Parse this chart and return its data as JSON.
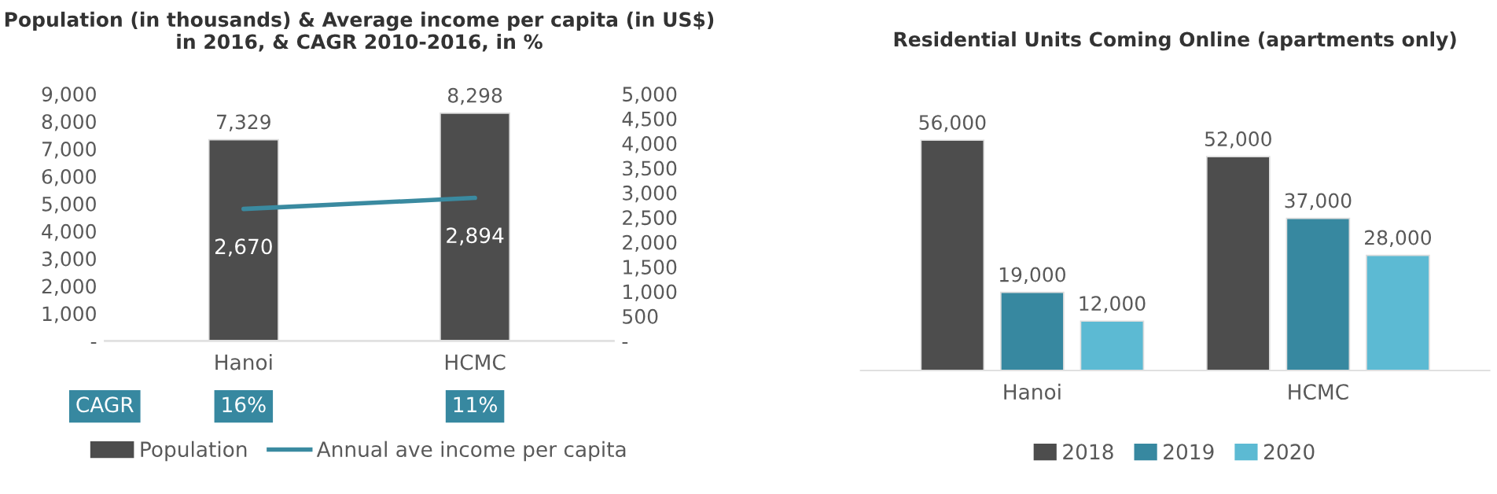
{
  "chart_data": [
    {
      "type": "bar",
      "title": "Population (in thousands) & Average income per capita (in US$) in 2016, & CAGR 2010-2016, in %",
      "categories": [
        "Hanoi",
        "HCMC"
      ],
      "series": [
        {
          "name": "Population",
          "color": "#4d4d4d",
          "values": [
            7329,
            8298
          ],
          "value_labels": [
            "7,329",
            "8,298"
          ]
        },
        {
          "name": "Annual ave income per capita",
          "type": "line",
          "axis": "y2",
          "color": "#3a8aa0",
          "values": [
            2670,
            2894
          ],
          "value_labels": [
            "2,670",
            "2,894"
          ]
        }
      ],
      "ylim": [
        0,
        9000
      ],
      "yticks": [
        {
          "value": 0,
          "label": "-"
        },
        {
          "value": 1000,
          "label": "1,000"
        },
        {
          "value": 2000,
          "label": "2,000"
        },
        {
          "value": 3000,
          "label": "3,000"
        },
        {
          "value": 4000,
          "label": "4,000"
        },
        {
          "value": 5000,
          "label": "5,000"
        },
        {
          "value": 6000,
          "label": "6,000"
        },
        {
          "value": 7000,
          "label": "7,000"
        },
        {
          "value": 8000,
          "label": "8,000"
        },
        {
          "value": 9000,
          "label": "9,000"
        }
      ],
      "y2lim": [
        0,
        5000
      ],
      "y2ticks": [
        {
          "value": 0,
          "label": "-"
        },
        500,
        {
          "value": 1000,
          "label": "1,000"
        },
        {
          "value": 1500,
          "label": "1,500"
        },
        {
          "value": 2000,
          "label": "2,000"
        },
        {
          "value": 2500,
          "label": "2,500"
        },
        {
          "value": 3000,
          "label": "3,000"
        },
        {
          "value": 3500,
          "label": "3,500"
        },
        {
          "value": 4000,
          "label": "4,000"
        },
        {
          "value": 4500,
          "label": "4,500"
        },
        {
          "value": 5000,
          "label": "5,000"
        }
      ],
      "legend": "bottom",
      "grid": false,
      "annotations": [
        "CAGR",
        "16%",
        "11%"
      ]
    },
    {
      "type": "bar",
      "title": "Residential Units Coming Online (apartments only)",
      "categories": [
        "Hanoi",
        "HCMC"
      ],
      "series": [
        {
          "name": "2018",
          "color": "#4d4d4d",
          "values": [
            56000,
            52000
          ],
          "value_labels": [
            "56,000",
            "52,000"
          ]
        },
        {
          "name": "2019",
          "color": "#3788a0",
          "values": [
            19000,
            37000
          ],
          "value_labels": [
            "19,000",
            "37,000"
          ]
        },
        {
          "name": "2020",
          "color": "#5cbad3",
          "values": [
            12000,
            28000
          ],
          "value_labels": [
            "12,000",
            "28,000"
          ]
        }
      ],
      "legend": "bottom",
      "grid": false,
      "tick_labels": "x"
    }
  ]
}
